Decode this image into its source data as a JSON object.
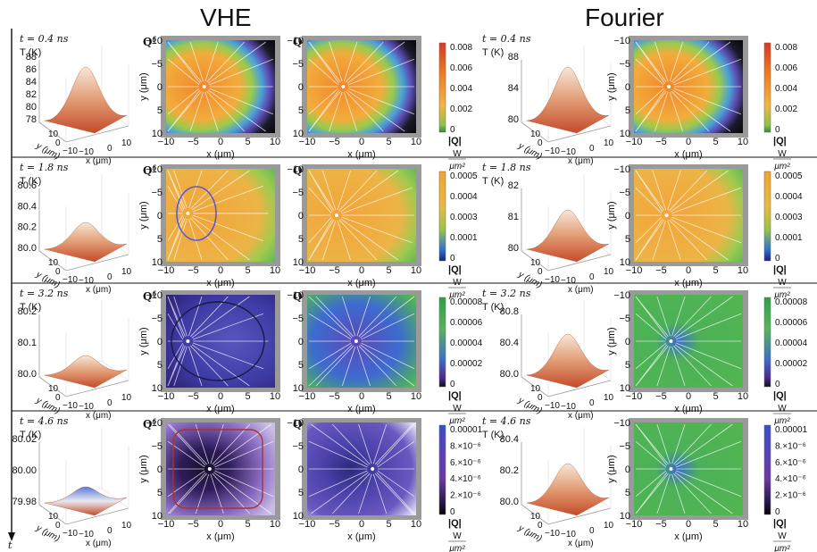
{
  "headers": {
    "left": "VHE",
    "right": "Fourier"
  },
  "time_axis_label": "t",
  "temp_label": "T (K)",
  "qdelta_label": "Q",
  "qdelta_sup": "δ",
  "qD_label": "Q",
  "qD_sup": "D",
  "x_axis_label": "x (μm)",
  "y_axis_label": "y (μm)",
  "surface_axis_labels": {
    "y": "y (μm)",
    "x": "x (μm)"
  },
  "surface_ticks": {
    "y": [
      "10",
      "0",
      "−10"
    ],
    "x": [
      "−10",
      "0",
      "10"
    ]
  },
  "heatmap_ticks": [
    "−10",
    "−5",
    "0",
    "5",
    "10"
  ],
  "colorbar_qlabel": "|Q|",
  "colorbar_unit_num": "W",
  "colorbar_unit_den": "μm²",
  "colors": {
    "surface": "#d7643c",
    "orange": "#f0a030",
    "green": "#44b24a",
    "blue": "#3a5cc8",
    "purple": "#5a2c9c",
    "black": "#141414",
    "grid_gray": "#888888"
  },
  "rows": [
    {
      "time": "t = 0.4 ns",
      "vhe_ticks": [
        "88",
        "86",
        "84",
        "82",
        "80",
        "78"
      ],
      "vhe_cbar": [
        "0.008",
        "0.006",
        "0.004",
        "0.002",
        "0"
      ],
      "fourier_ticks": [
        "88",
        "84",
        "80"
      ],
      "fourier_cbar": [
        "0.008",
        "0.006",
        "0.004",
        "0.002",
        "0"
      ]
    },
    {
      "time": "t = 1.8 ns",
      "vhe_ticks": [
        "80.6",
        "80.4",
        "80.2",
        "80.0"
      ],
      "vhe_cbar": [
        "0.0005",
        "0.0004",
        "0.0003",
        "0.0001",
        "0"
      ],
      "fourier_ticks": [
        "82",
        "81",
        "80"
      ],
      "fourier_cbar": [
        "0.0005",
        "0.0004",
        "0.0003",
        "0.0001",
        "0"
      ]
    },
    {
      "time": "t = 3.2 ns",
      "vhe_ticks": [
        "80.2",
        "80.1",
        "80.0"
      ],
      "vhe_cbar": [
        "0.00008",
        "0.00006",
        "0.00004",
        "0.00002",
        "0"
      ],
      "fourier_ticks": [
        "80.8",
        "80.4",
        "80.0"
      ],
      "fourier_cbar": [
        "0.00008",
        "0.00006",
        "0.00004",
        "0.00002",
        "0"
      ]
    },
    {
      "time": "t = 4.6 ns",
      "vhe_ticks": [
        "80.02",
        "80.00",
        "79.98"
      ],
      "vhe_cbar": [
        "0.00001",
        "8.×10⁻⁶",
        "6.×10⁻⁶",
        "4.×10⁻⁶",
        "2.×10⁻⁶",
        "0"
      ],
      "fourier_ticks": [
        "80.4",
        "80.2",
        "80.0"
      ],
      "fourier_cbar": [
        "0.00001",
        "8.×10⁻⁶",
        "6.×10⁻⁶",
        "4.×10⁻⁶",
        "2.×10⁻⁶",
        "0"
      ]
    }
  ]
}
